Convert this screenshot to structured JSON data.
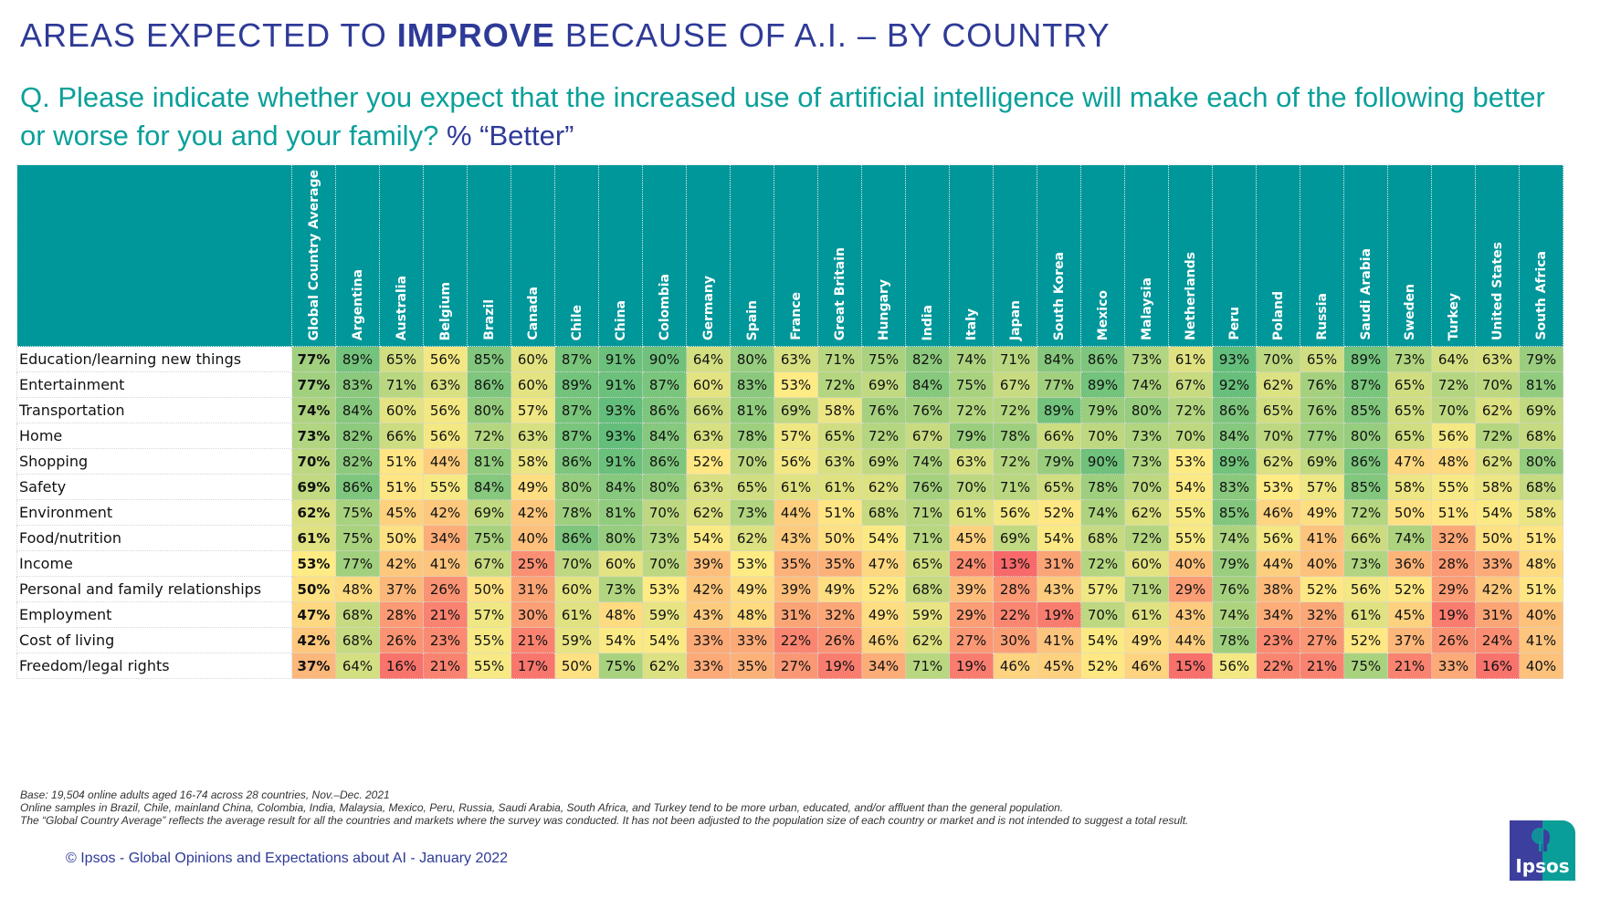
{
  "header": {
    "title_pre": "AREAS EXPECTED TO ",
    "title_bold": "IMPROVE",
    "title_post": " BECAUSE OF A.I. – BY COUNTRY",
    "question": "Q. Please indicate whether you expect that the increased use of artificial intelligence will make each of the following better or worse for you and your family? ",
    "question_suffix": "% “Better”"
  },
  "colors": {
    "header_bg": "#00979a",
    "title": "#2e3a97",
    "question": "#0aa09a",
    "scale_low": "#f8696b",
    "scale_mid": "#ffeb84",
    "scale_high": "#63be7b"
  },
  "chart_data": {
    "type": "heatmap",
    "title": "Areas expected to improve because of A.I. – by country",
    "value_unit": "%",
    "columns": [
      "Global Country Average",
      "Argentina",
      "Australia",
      "Belgium",
      "Brazil",
      "Canada",
      "Chile",
      "China",
      "Colombia",
      "Germany",
      "Spain",
      "France",
      "Great Britain",
      "Hungary",
      "India",
      "Italy",
      "Japan",
      "South Korea",
      "Mexico",
      "Malaysia",
      "Netherlands",
      "Peru",
      "Poland",
      "Russia",
      "Saudi Arabia",
      "Sweden",
      "Turkey",
      "United States",
      "South Africa"
    ],
    "rows": [
      {
        "label": "Education/learning new things",
        "values": [
          77,
          89,
          65,
          56,
          85,
          60,
          87,
          91,
          90,
          64,
          80,
          63,
          71,
          75,
          82,
          74,
          71,
          84,
          86,
          73,
          61,
          93,
          70,
          65,
          89,
          73,
          64,
          63,
          79
        ]
      },
      {
        "label": "Entertainment",
        "values": [
          77,
          83,
          71,
          63,
          86,
          60,
          89,
          91,
          87,
          60,
          83,
          53,
          72,
          69,
          84,
          75,
          67,
          77,
          89,
          74,
          67,
          92,
          62,
          76,
          87,
          65,
          72,
          70,
          81
        ]
      },
      {
        "label": "Transportation",
        "values": [
          74,
          84,
          60,
          56,
          80,
          57,
          87,
          93,
          86,
          66,
          81,
          69,
          58,
          76,
          76,
          72,
          72,
          89,
          79,
          80,
          72,
          86,
          65,
          76,
          85,
          65,
          70,
          62,
          69
        ]
      },
      {
        "label": "Home",
        "values": [
          73,
          82,
          66,
          56,
          72,
          63,
          87,
          93,
          84,
          63,
          78,
          57,
          65,
          72,
          67,
          79,
          78,
          66,
          70,
          73,
          70,
          84,
          70,
          77,
          80,
          65,
          56,
          72,
          68
        ]
      },
      {
        "label": "Shopping",
        "values": [
          70,
          82,
          51,
          44,
          81,
          58,
          86,
          91,
          86,
          52,
          70,
          56,
          63,
          69,
          74,
          63,
          72,
          79,
          90,
          73,
          53,
          89,
          62,
          69,
          86,
          47,
          48,
          62,
          80
        ]
      },
      {
        "label": "Safety",
        "values": [
          69,
          86,
          51,
          55,
          84,
          49,
          80,
          84,
          80,
          63,
          65,
          61,
          61,
          62,
          76,
          70,
          71,
          65,
          78,
          70,
          54,
          83,
          53,
          57,
          85,
          58,
          55,
          58,
          68
        ]
      },
      {
        "label": "Environment",
        "values": [
          62,
          75,
          45,
          42,
          69,
          42,
          78,
          81,
          70,
          62,
          73,
          44,
          51,
          68,
          71,
          61,
          56,
          52,
          74,
          62,
          55,
          85,
          46,
          49,
          72,
          50,
          51,
          54,
          58
        ]
      },
      {
        "label": "Food/nutrition",
        "values": [
          61,
          75,
          50,
          34,
          75,
          40,
          86,
          80,
          73,
          54,
          62,
          43,
          50,
          54,
          71,
          45,
          69,
          54,
          68,
          72,
          55,
          74,
          56,
          41,
          66,
          74,
          32,
          50,
          51
        ]
      },
      {
        "label": "Income",
        "values": [
          53,
          77,
          42,
          41,
          67,
          25,
          70,
          60,
          70,
          39,
          53,
          35,
          35,
          47,
          65,
          24,
          13,
          31,
          72,
          60,
          40,
          79,
          44,
          40,
          73,
          36,
          28,
          33,
          48
        ]
      },
      {
        "label": "Personal and family relationships",
        "values": [
          50,
          48,
          37,
          26,
          50,
          31,
          60,
          73,
          53,
          42,
          49,
          39,
          49,
          52,
          68,
          39,
          28,
          43,
          57,
          71,
          29,
          76,
          38,
          52,
          56,
          52,
          29,
          42,
          51
        ]
      },
      {
        "label": "Employment",
        "values": [
          47,
          68,
          28,
          21,
          57,
          30,
          61,
          48,
          59,
          43,
          48,
          31,
          32,
          49,
          59,
          29,
          22,
          19,
          70,
          61,
          43,
          74,
          34,
          32,
          61,
          45,
          19,
          31,
          40
        ]
      },
      {
        "label": "Cost of living",
        "values": [
          42,
          68,
          26,
          23,
          55,
          21,
          59,
          54,
          54,
          33,
          33,
          22,
          26,
          46,
          62,
          27,
          30,
          41,
          54,
          49,
          44,
          78,
          23,
          27,
          52,
          37,
          26,
          24,
          41
        ]
      },
      {
        "label": "Freedom/legal rights",
        "values": [
          37,
          64,
          16,
          21,
          55,
          17,
          50,
          75,
          62,
          33,
          35,
          27,
          19,
          34,
          71,
          19,
          46,
          45,
          52,
          46,
          15,
          56,
          22,
          21,
          75,
          21,
          33,
          16,
          40
        ]
      }
    ]
  },
  "footer": {
    "notes": [
      "Base: 19,504 online adults aged 16-74 across 28 countries, Nov.–Dec. 2021",
      "Online samples in Brazil, Chile, mainland China, Colombia, India, Malaysia, Mexico, Peru, Russia, Saudi Arabia, South Africa, and Turkey tend to be more urban, educated, and/or affluent than the general population.",
      "The “Global  Country Average” reflects the average result for all the countries and markets where the survey was conducted. It has not been adjusted to the population size of each country or market and is not intended to suggest a total result."
    ],
    "copyright": "© Ipsos - Global Opinions and Expectations about AI - January 2022",
    "logo_text": "Ipsos"
  }
}
